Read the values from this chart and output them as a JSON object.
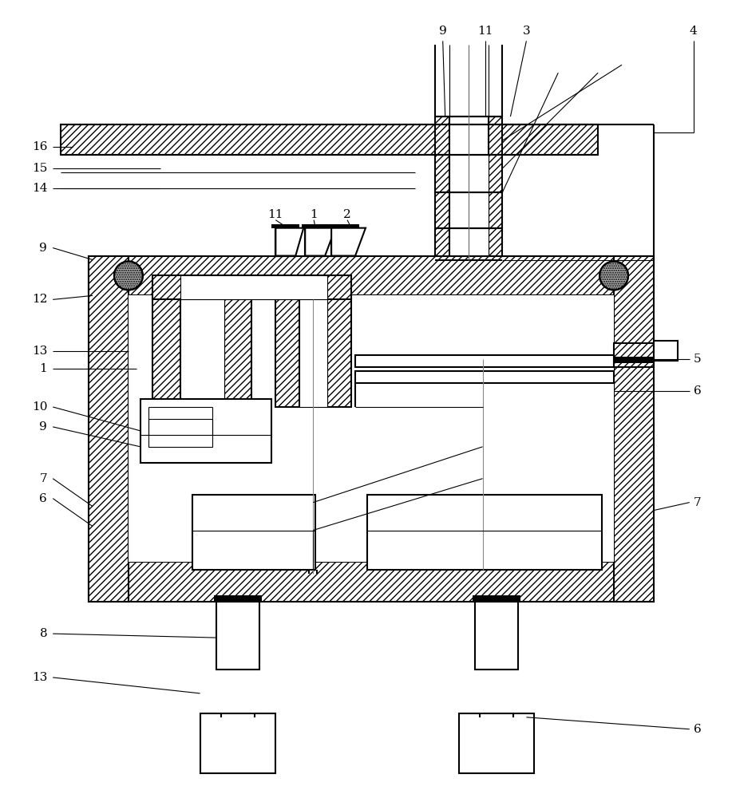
{
  "bg_color": "#ffffff",
  "line_color": "#000000",
  "figsize": [
    9.17,
    10.0
  ],
  "dpi": 100,
  "lw_main": 1.5,
  "lw_thin": 0.8,
  "fs": 11
}
